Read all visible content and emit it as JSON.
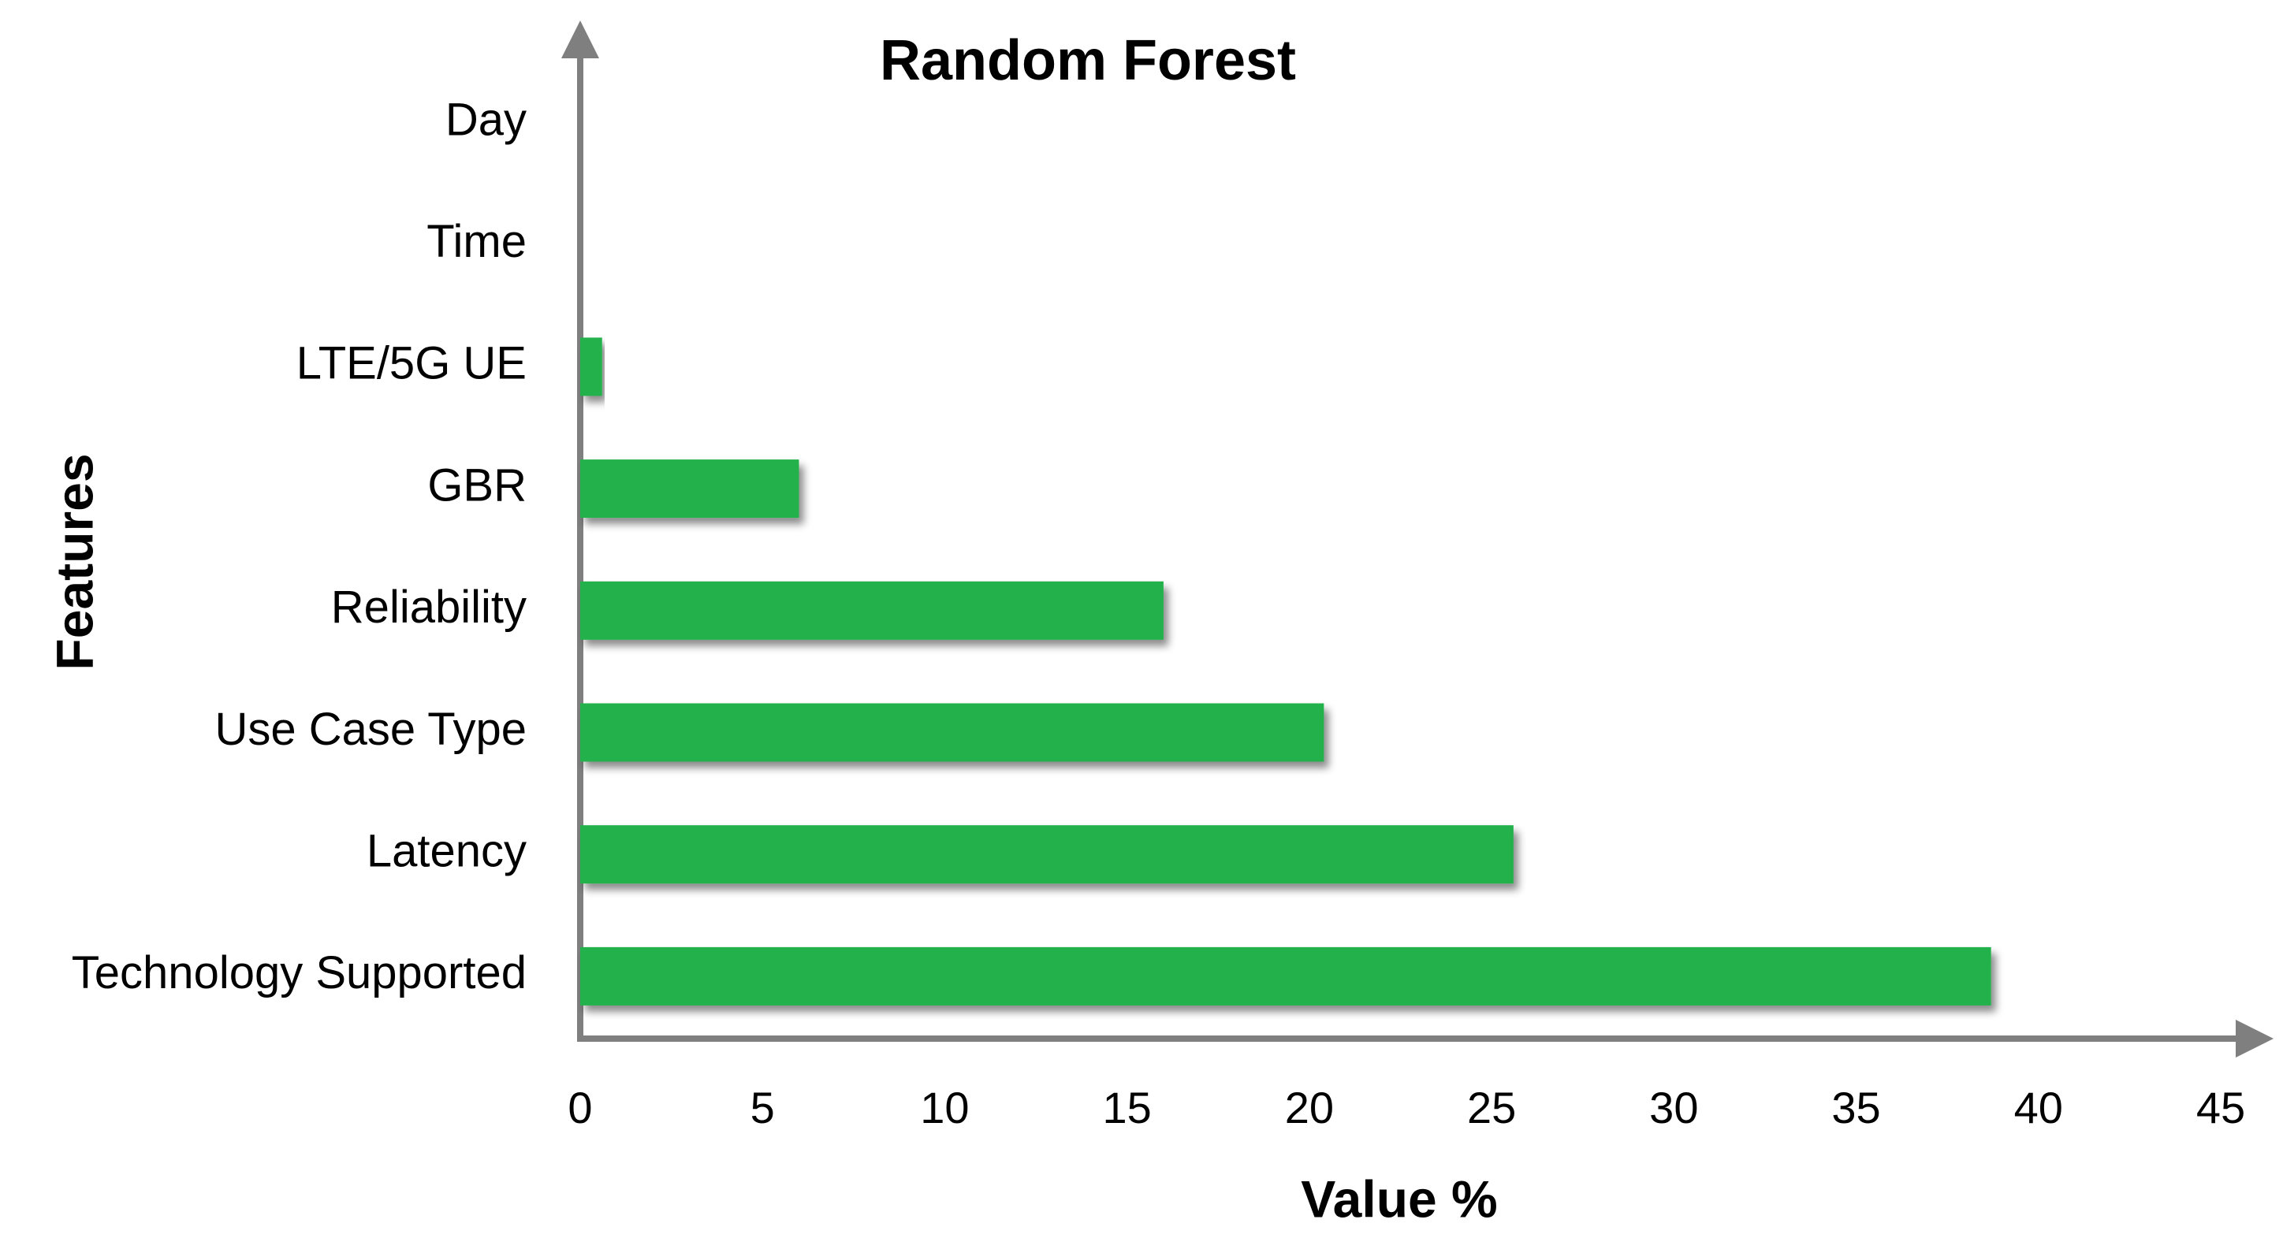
{
  "chart_data": {
    "type": "bar",
    "orientation": "horizontal",
    "title": "Random Forest",
    "x_label": "Value %",
    "y_label": "Features",
    "categories": [
      "Day",
      "Time",
      "LTE/5G UE",
      "GBR",
      "Reliability",
      "Use Case Type",
      "Latency",
      "Technology Supported"
    ],
    "values": [
      0,
      0,
      0.6,
      6.0,
      16.0,
      20.4,
      25.6,
      38.7
    ],
    "color": "#22b14c",
    "xlim": [
      0,
      45
    ],
    "xticks": [
      0,
      5,
      10,
      15,
      20,
      25,
      30,
      35,
      40,
      45
    ],
    "grid": false
  }
}
